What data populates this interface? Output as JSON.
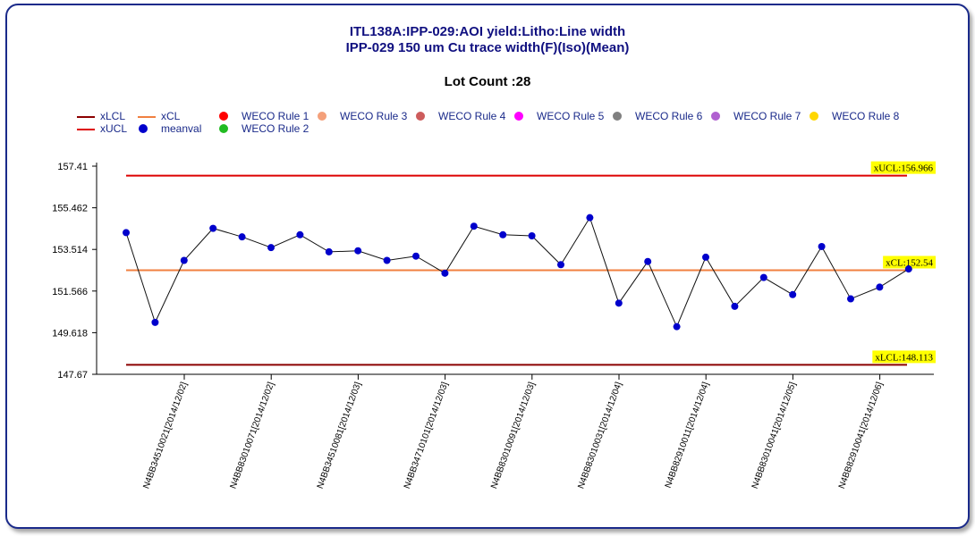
{
  "title_line1": "ITL138A:IPP-029:AOI yield:Litho:Line width",
  "title_line2": "IPP-029 150 um Cu trace width(F)(Iso)(Mean)",
  "lot_count": "Lot Count :28",
  "legend": [
    {
      "label": "xLCL",
      "kind": "line",
      "color": "#8b0000"
    },
    {
      "label": "xCL",
      "kind": "line",
      "color": "#f08040"
    },
    {
      "label": "WECO Rule 1",
      "kind": "dot",
      "color": "#ff0000"
    },
    {
      "label": "WECO Rule 3",
      "kind": "dot",
      "color": "#f4a07a"
    },
    {
      "label": "WECO Rule 4",
      "kind": "dot",
      "color": "#cd5c5c"
    },
    {
      "label": "WECO Rule 5",
      "kind": "dot",
      "color": "#ff00ff"
    },
    {
      "label": "WECO Rule 6",
      "kind": "dot",
      "color": "#808080"
    },
    {
      "label": "WECO Rule 7",
      "kind": "dot",
      "color": "#b060d0"
    },
    {
      "label": "WECO Rule 8",
      "kind": "dot",
      "color": "#ffd700"
    },
    {
      "label": "xUCL",
      "kind": "line",
      "color": "#dd0000"
    },
    {
      "label": "meanval",
      "kind": "dot",
      "color": "#0000cc"
    },
    {
      "label": "WECO Rule 2",
      "kind": "dot",
      "color": "#22bb22"
    }
  ],
  "chart_data": {
    "type": "line",
    "ylim": [
      147.67,
      157.41
    ],
    "y_ticks": [
      "157.41",
      "155.462",
      "153.514",
      "151.566",
      "149.618",
      "147.67"
    ],
    "x_ticks": [
      "N4BB34510021[2014/12/02]",
      "N4BB83010071[2014/12/02]",
      "N4BB34510081[2014/12/03]",
      "N4BB34710101[2014/12/03]",
      "N4BB83010091[2014/12/03]",
      "N4BB83010031[2014/12/04]",
      "N4BB82910011[2014/12/04]",
      "N4BB83010041[2014/12/05]",
      "N4BB82910041[2014/12/06]"
    ],
    "limits": {
      "xUCL": {
        "value": 156.966,
        "label": "xUCL:156.966",
        "color": "#dd0000"
      },
      "xCL": {
        "value": 152.54,
        "label": "xCL:152.54",
        "color": "#f08040"
      },
      "xLCL": {
        "value": 148.113,
        "label": "xLCL:148.113",
        "color": "#8b0000"
      }
    },
    "series": [
      {
        "name": "meanval",
        "color": "#0000cc",
        "values": [
          154.3,
          150.1,
          153.0,
          154.5,
          154.1,
          153.6,
          154.2,
          153.4,
          153.45,
          153.0,
          153.2,
          152.4,
          154.6,
          154.2,
          154.15,
          152.8,
          155.0,
          151.0,
          152.95,
          149.9,
          153.15,
          150.85,
          152.2,
          151.4,
          153.65,
          151.2,
          151.75,
          152.6
        ]
      }
    ]
  }
}
